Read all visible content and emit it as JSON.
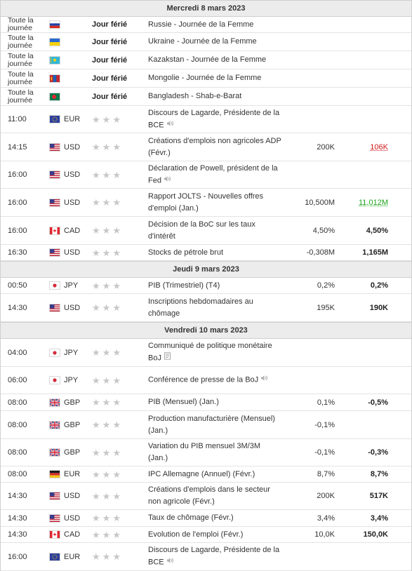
{
  "colors": {
    "header_bg": "#ececec",
    "positive": "#1aa319",
    "negative": "#d11a1a",
    "star": "#c7c7c7"
  },
  "days": [
    {
      "date": "Mercredi 8 mars 2023",
      "events": [
        {
          "time": "Toute la journée",
          "flag": "ru",
          "currency": "",
          "impact": "Jour férié",
          "event": "Russie - Journée de la Femme",
          "icon": "",
          "actual": "",
          "forecast": "",
          "forecast_style": ""
        },
        {
          "time": "Toute la journée",
          "flag": "ua",
          "currency": "",
          "impact": "Jour férié",
          "event": "Ukraine - Journée de la Femme",
          "icon": "",
          "actual": "",
          "forecast": "",
          "forecast_style": ""
        },
        {
          "time": "Toute la journée",
          "flag": "kz",
          "currency": "",
          "impact": "Jour férié",
          "event": "Kazakstan - Journée de la Femme",
          "icon": "",
          "actual": "",
          "forecast": "",
          "forecast_style": ""
        },
        {
          "time": "Toute la journée",
          "flag": "mn",
          "currency": "",
          "impact": "Jour férié",
          "event": "Mongolie - Journée de la Femme",
          "icon": "",
          "actual": "",
          "forecast": "",
          "forecast_style": ""
        },
        {
          "time": "Toute la journée",
          "flag": "bd",
          "currency": "",
          "impact": "Jour férié",
          "event": "Bangladesh - Shab-e-Barat",
          "icon": "",
          "actual": "",
          "forecast": "",
          "forecast_style": ""
        },
        {
          "time": "11:00",
          "flag": "eu",
          "currency": "EUR",
          "impact": "",
          "event": "Discours de Lagarde, Présidente de la BCE",
          "icon": "speaker",
          "actual": "",
          "forecast": "",
          "forecast_style": ""
        },
        {
          "time": "14:15",
          "flag": "us",
          "currency": "USD",
          "impact": "",
          "event": "Créations d'emplois non agricoles ADP (Févr.)",
          "icon": "",
          "actual": "200K",
          "forecast": "106K",
          "forecast_style": "down"
        },
        {
          "time": "16:00",
          "flag": "us",
          "currency": "USD",
          "impact": "",
          "event": "Déclaration de Powell, président de la Fed",
          "icon": "speaker",
          "actual": "",
          "forecast": "",
          "forecast_style": ""
        },
        {
          "time": "16:00",
          "flag": "us",
          "currency": "USD",
          "impact": "",
          "event": "Rapport JOLTS - Nouvelles offres d'emploi (Jan.)",
          "icon": "",
          "actual": "10,500M",
          "forecast": "11,012M",
          "forecast_style": "up"
        },
        {
          "time": "16:00",
          "flag": "ca",
          "currency": "CAD",
          "impact": "",
          "event": "Décision de la BoC sur les taux d'intérêt",
          "icon": "",
          "actual": "4,50%",
          "forecast": "4,50%",
          "forecast_style": "bold"
        },
        {
          "time": "16:30",
          "flag": "us",
          "currency": "USD",
          "impact": "",
          "event": "Stocks de pétrole brut",
          "icon": "",
          "actual": "-0,308M",
          "forecast": "1,165M",
          "forecast_style": "bold"
        }
      ]
    },
    {
      "date": "Jeudi 9 mars 2023",
      "events": [
        {
          "time": "00:50",
          "flag": "jp",
          "currency": "JPY",
          "impact": "",
          "event": "PIB (Trimestriel) (T4)",
          "icon": "",
          "actual": "0,2%",
          "forecast": "0,2%",
          "forecast_style": "bold"
        },
        {
          "time": "14:30",
          "flag": "us",
          "currency": "USD",
          "impact": "",
          "event": "Inscriptions hebdomadaires au chômage",
          "icon": "",
          "actual": "195K",
          "forecast": "190K",
          "forecast_style": "bold"
        }
      ]
    },
    {
      "date": "Vendredi 10 mars 2023",
      "events": [
        {
          "time": "04:00",
          "flag": "jp",
          "currency": "JPY",
          "impact": "",
          "event": "Communiqué de politique monétaire BoJ",
          "icon": "report",
          "actual": "",
          "forecast": "",
          "forecast_style": ""
        },
        {
          "time": "06:00",
          "flag": "jp",
          "currency": "JPY",
          "impact": "",
          "event": "Conférence de presse de la BoJ",
          "icon": "speaker",
          "actual": "",
          "forecast": "",
          "forecast_style": ""
        },
        {
          "time": "08:00",
          "flag": "gb",
          "currency": "GBP",
          "impact": "",
          "event": "PIB (Mensuel) (Jan.)",
          "icon": "",
          "actual": "0,1%",
          "forecast": "-0,5%",
          "forecast_style": "bold"
        },
        {
          "time": "08:00",
          "flag": "gb",
          "currency": "GBP",
          "impact": "",
          "event": "Production manufacturière (Mensuel) (Jan.)",
          "icon": "",
          "actual": "-0,1%",
          "forecast": "",
          "forecast_style": ""
        },
        {
          "time": "08:00",
          "flag": "gb",
          "currency": "GBP",
          "impact": "",
          "event": "Variation du PIB mensuel 3M/3M (Jan.)",
          "icon": "",
          "actual": "-0,1%",
          "forecast": "-0,3%",
          "forecast_style": "bold"
        },
        {
          "time": "08:00",
          "flag": "de",
          "currency": "EUR",
          "impact": "",
          "event": "IPC Allemagne (Annuel) (Févr.)",
          "icon": "",
          "actual": "8,7%",
          "forecast": "8,7%",
          "forecast_style": "bold"
        },
        {
          "time": "14:30",
          "flag": "us",
          "currency": "USD",
          "impact": "",
          "event": "Créations d'emplois dans le secteur non agricole (Févr.)",
          "icon": "",
          "actual": "200K",
          "forecast": "517K",
          "forecast_style": "bold"
        },
        {
          "time": "14:30",
          "flag": "us",
          "currency": "USD",
          "impact": "",
          "event": "Taux de chômage (Févr.)",
          "icon": "",
          "actual": "3,4%",
          "forecast": "3,4%",
          "forecast_style": "bold"
        },
        {
          "time": "14:30",
          "flag": "ca",
          "currency": "CAD",
          "impact": "",
          "event": "Evolution de l'emploi (Févr.)",
          "icon": "",
          "actual": "10,0K",
          "forecast": "150,0K",
          "forecast_style": "bold"
        },
        {
          "time": "16:00",
          "flag": "eu",
          "currency": "EUR",
          "impact": "",
          "event": "Discours de Lagarde, Présidente de la BCE",
          "icon": "speaker",
          "actual": "",
          "forecast": "",
          "forecast_style": ""
        }
      ]
    }
  ]
}
